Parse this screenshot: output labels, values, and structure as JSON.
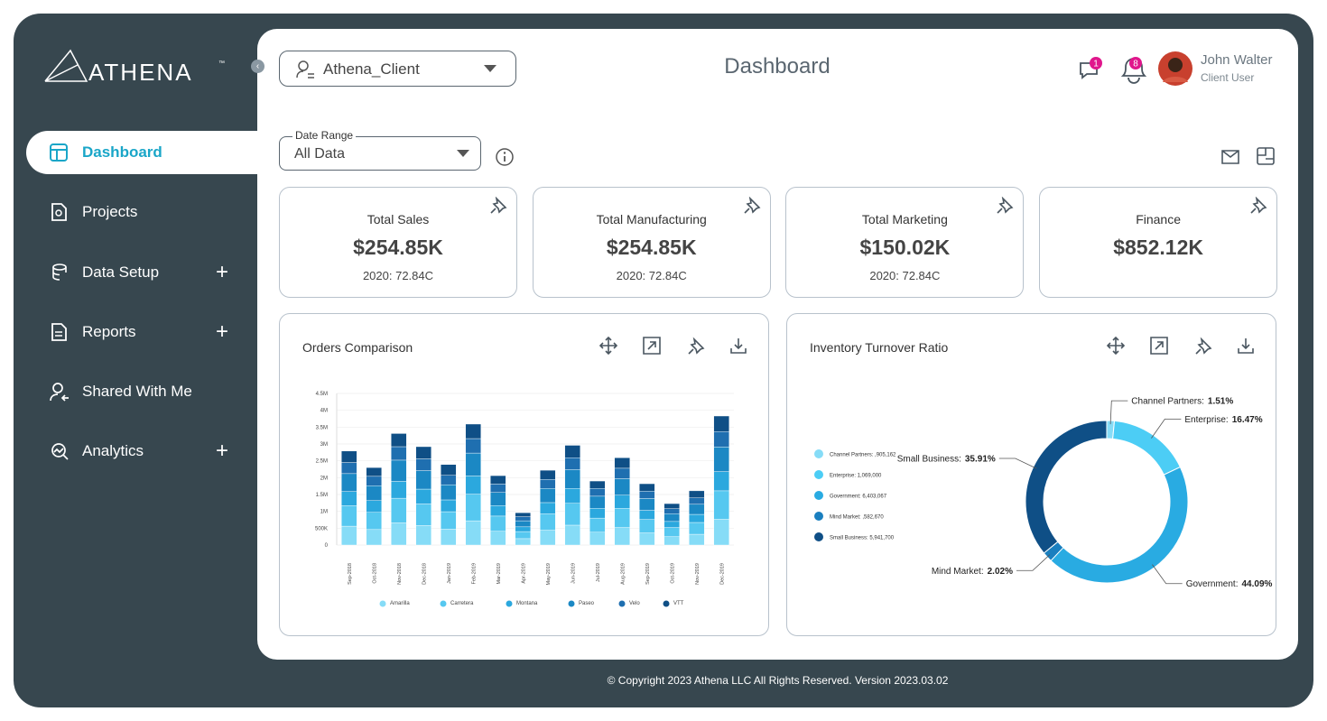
{
  "brand": {
    "name": "ATHENA",
    "mark": "™"
  },
  "nav": {
    "items": [
      "Dashboard",
      "Projects",
      "Data Setup",
      "Reports",
      "Shared With Me",
      "Analytics"
    ]
  },
  "header": {
    "client": "Athena_Client",
    "title": "Dashboard",
    "messages_badge": "1",
    "notifications_badge": "8",
    "user_name": "John Walter",
    "user_role": "Client User"
  },
  "filters": {
    "date_range_label": "Date Range",
    "date_range_value": "All Data"
  },
  "kpis": [
    {
      "title": "Total Sales",
      "value": "$254.85K",
      "note": "2020: 72.84C"
    },
    {
      "title": "Total Manufacturing",
      "value": "$254.85K",
      "note": "2020: 72.84C"
    },
    {
      "title": "Total Marketing",
      "value": "$150.02K",
      "note": "2020: 72.84C"
    },
    {
      "title": "Finance",
      "value": "$852.12K"
    }
  ],
  "chart_data": [
    {
      "type": "bar",
      "stacked": true,
      "title": "Orders Comparison",
      "categories": [
        "Sep-2018",
        "Oct-2018",
        "Nov-2018",
        "Dec-2018",
        "Jan-2019",
        "Feb-2019",
        "Mar-2019",
        "Apr-2019",
        "May-2019",
        "Jun-2019",
        "Jul-2019",
        "Aug-2019",
        "Sep-2019",
        "Oct-2019",
        "Nov-2019",
        "Dec-2019"
      ],
      "series": [
        {
          "name": "Amarilla",
          "color": "#86dcf7",
          "values": [
            560000,
            460000,
            660000,
            580000,
            470000,
            720000,
            410000,
            190000,
            440000,
            590000,
            380000,
            520000,
            360000,
            250000,
            320000,
            770000
          ]
        },
        {
          "name": "Carretera",
          "color": "#56c8f0",
          "values": [
            610000,
            510000,
            730000,
            640000,
            520000,
            790000,
            450000,
            210000,
            490000,
            650000,
            420000,
            570000,
            400000,
            270000,
            350000,
            840000
          ]
        },
        {
          "name": "Montana",
          "color": "#2ba8de",
          "values": [
            420000,
            350000,
            500000,
            440000,
            350000,
            540000,
            310000,
            140000,
            330000,
            440000,
            290000,
            390000,
            270000,
            180000,
            240000,
            570000
          ]
        },
        {
          "name": "Paseo",
          "color": "#1b88c4",
          "values": [
            530000,
            440000,
            630000,
            550000,
            450000,
            680000,
            390000,
            180000,
            420000,
            560000,
            360000,
            490000,
            350000,
            230000,
            300000,
            730000
          ]
        },
        {
          "name": "Velo",
          "color": "#1f6fb0",
          "values": [
            330000,
            280000,
            400000,
            350000,
            280000,
            430000,
            250000,
            120000,
            270000,
            350000,
            230000,
            310000,
            220000,
            150000,
            190000,
            460000
          ]
        },
        {
          "name": "VTT",
          "color": "#0f4f86",
          "values": [
            340000,
            260000,
            390000,
            360000,
            320000,
            430000,
            250000,
            120000,
            270000,
            370000,
            220000,
            310000,
            220000,
            150000,
            210000,
            460000
          ]
        }
      ],
      "ylim": [
        0,
        4500000
      ],
      "yticks": [
        0,
        {
          "value": 500000,
          "label": "500K"
        },
        {
          "value": 1000000,
          "label": "1M"
        },
        {
          "value": 1500000,
          "label": "1.5M"
        },
        {
          "value": 2000000,
          "label": "2M"
        },
        {
          "value": 2500000,
          "label": "2.5M"
        },
        {
          "value": 3000000,
          "label": "3M"
        },
        {
          "value": 3500000,
          "label": "3.5M"
        },
        {
          "value": 4000000,
          "label": "4M"
        },
        {
          "value": 4500000,
          "label": "4.5M"
        }
      ],
      "grid": true
    },
    {
      "type": "donut",
      "title": "Inventory Turnover Ratio",
      "categories": [
        "Channel Partners:",
        "Enterprise:",
        "Government:",
        "Mind Market:",
        "Small Business:"
      ],
      "values": [
        1.51,
        16.47,
        44.09,
        2.02,
        35.91
      ],
      "value_labels": [
        "1.51%",
        "16.47%",
        "44.09%",
        "2.02%",
        "35.91%"
      ],
      "colors": [
        "#86dcf7",
        "#4ccdf5",
        "#29abe2",
        "#1a7fbf",
        "#0f4f86"
      ],
      "legend_labels": [
        "Channel Partners: ,905,162",
        "Enterprise: 1,069,000",
        "Government: 6,403,067",
        "Mind Market: ,582,670",
        "Small Business: 5,941,700"
      ]
    }
  ],
  "footer": {
    "text": "© Copyright 2023 Athena LLC All Rights Reserved. Version 2023.03.02"
  }
}
